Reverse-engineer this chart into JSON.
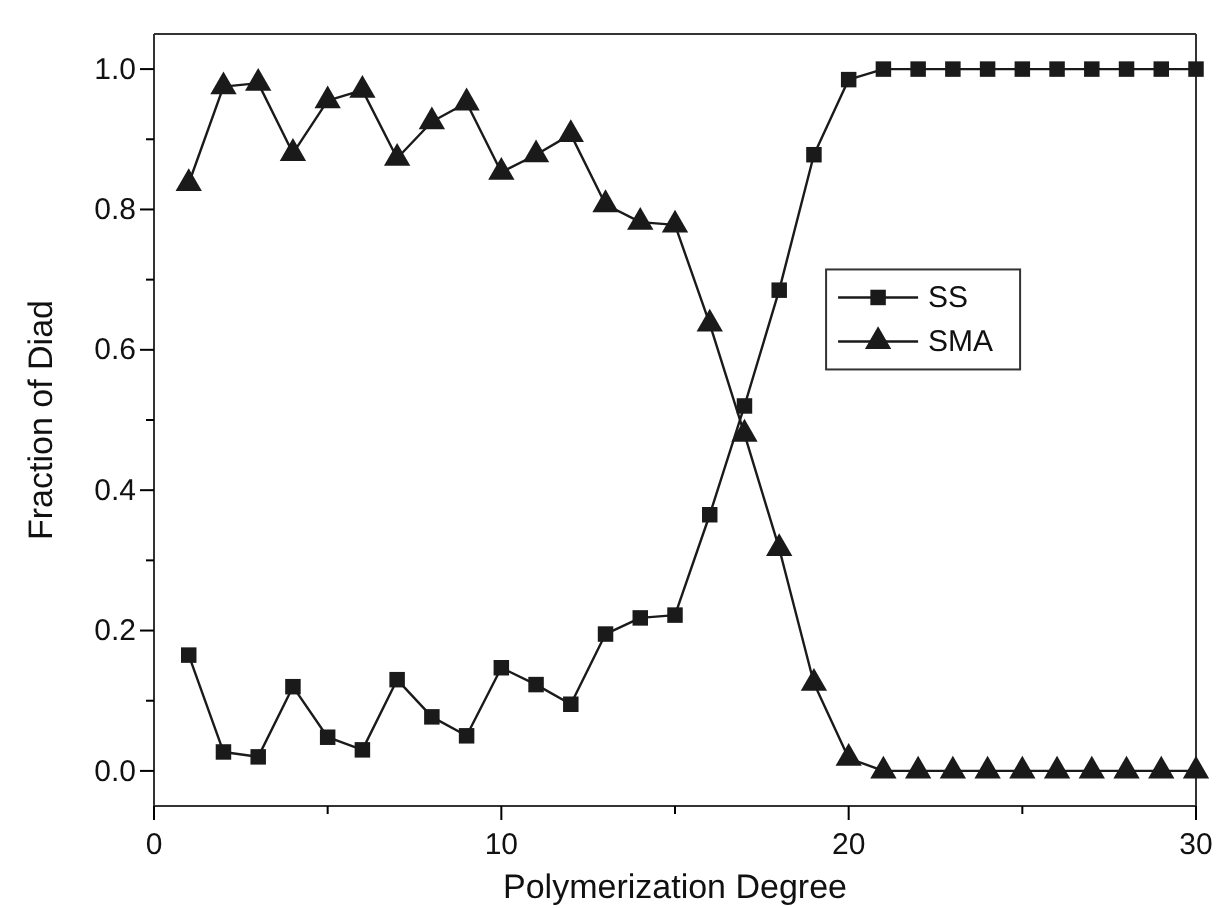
{
  "chart_data": {
    "type": "line",
    "xlabel": "Polymerization Degree",
    "ylabel": "Fraction of Diad",
    "x": [
      1,
      2,
      3,
      4,
      5,
      6,
      7,
      8,
      9,
      10,
      11,
      12,
      13,
      14,
      15,
      16,
      17,
      18,
      19,
      20,
      21,
      22,
      23,
      24,
      25,
      26,
      27,
      28,
      29,
      30
    ],
    "series": [
      {
        "name": "SS",
        "color": "#1a1a1a",
        "marker": "square",
        "values": [
          0.165,
          0.027,
          0.02,
          0.12,
          0.048,
          0.03,
          0.13,
          0.077,
          0.05,
          0.147,
          0.123,
          0.095,
          0.195,
          0.218,
          0.222,
          0.365,
          0.52,
          0.685,
          0.878,
          0.985,
          1.0,
          1.0,
          1.0,
          1.0,
          1.0,
          1.0,
          1.0,
          1.0,
          1.0,
          1.0
        ]
      },
      {
        "name": "SMA",
        "color": "#1a1a1a",
        "marker": "triangle",
        "values": [
          0.837,
          0.975,
          0.98,
          0.88,
          0.955,
          0.97,
          0.873,
          0.925,
          0.952,
          0.853,
          0.878,
          0.907,
          0.807,
          0.782,
          0.778,
          0.637,
          0.48,
          0.317,
          0.125,
          0.018,
          0.0,
          0.0,
          0.0,
          0.0,
          0.0,
          0.0,
          0.0,
          0.0,
          0.0,
          0.0
        ]
      }
    ],
    "xlim": [
      0,
      30
    ],
    "xticks": [
      0,
      {
        "value": 5,
        "label": null
      },
      10,
      {
        "value": 15,
        "label": null
      },
      20,
      {
        "value": 25,
        "label": null
      },
      30
    ],
    "ylim": [
      -0.05,
      1.05
    ],
    "yticks": [
      "0.0",
      {
        "value": 0.1,
        "label": null
      },
      {
        "value": 0.2,
        "label": "0.2"
      },
      {
        "value": 0.3,
        "label": null
      },
      {
        "value": 0.4,
        "label": "0.4"
      },
      {
        "value": 0.5,
        "label": null
      },
      {
        "value": 0.6,
        "label": "0.6"
      },
      {
        "value": 0.7,
        "label": null
      },
      {
        "value": 0.8,
        "label": "0.8"
      },
      {
        "value": 0.9,
        "label": null
      },
      {
        "value": 1.0,
        "label": "1.0"
      }
    ],
    "legend": "right",
    "grid": false,
    "line_style": "solid"
  }
}
